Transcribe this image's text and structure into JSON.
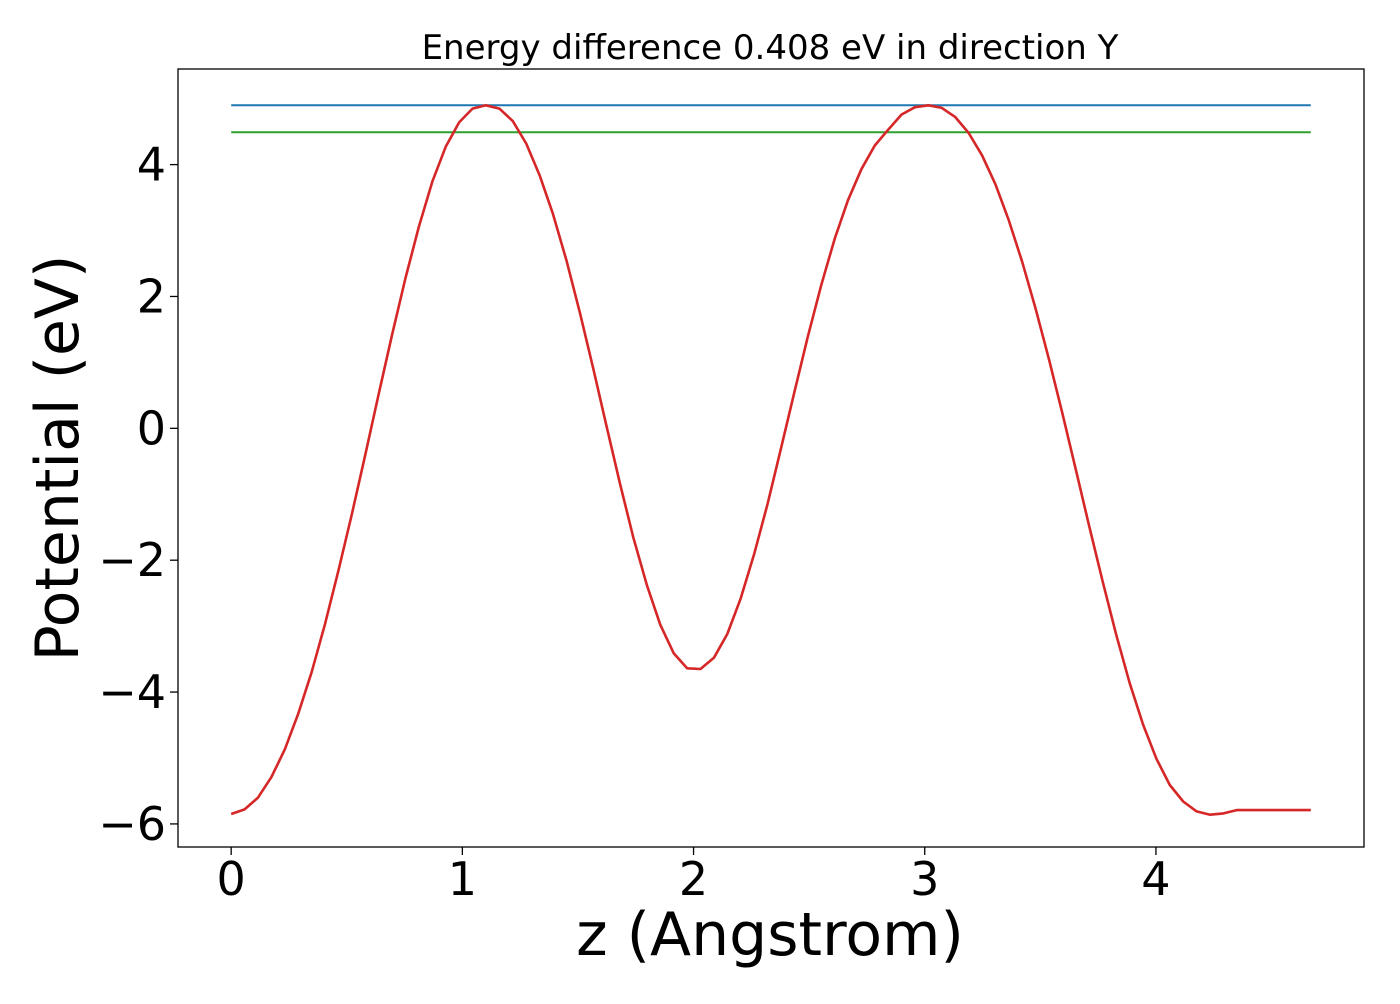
{
  "chart_data": {
    "type": "line",
    "title": "Energy difference 0.408 eV in direction Y",
    "xlabel": "z (Angstrom)",
    "ylabel": "Potential (eV)",
    "xlim": [
      -0.23,
      4.9
    ],
    "ylim": [
      -6.35,
      5.45
    ],
    "xticks": [
      0,
      1,
      2,
      3,
      4
    ],
    "yticks": [
      -6,
      -4,
      -2,
      0,
      2,
      4
    ],
    "xtick_labels": [
      "0",
      "1",
      "2",
      "3",
      "4"
    ],
    "ytick_labels": [
      "−6",
      "−4",
      "−2",
      "0",
      "2",
      "4"
    ],
    "grid": false,
    "legend": "none",
    "colors": {
      "potential": "#d62728",
      "upper_level": "#1f77b4",
      "lower_level": "#2ca02c",
      "frame": "#000000"
    },
    "series": [
      {
        "key": "potential",
        "color": "#d62728",
        "x": [
          0.0,
          0.058,
          0.116,
          0.174,
          0.232,
          0.29,
          0.348,
          0.406,
          0.464,
          0.522,
          0.58,
          0.638,
          0.696,
          0.754,
          0.812,
          0.87,
          0.928,
          0.986,
          1.044,
          1.102,
          1.16,
          1.218,
          1.276,
          1.334,
          1.392,
          1.45,
          1.508,
          1.566,
          1.624,
          1.682,
          1.74,
          1.798,
          1.856,
          1.914,
          1.972,
          2.03,
          2.088,
          2.146,
          2.204,
          2.262,
          2.32,
          2.378,
          2.436,
          2.494,
          2.552,
          2.61,
          2.668,
          2.726,
          2.784,
          2.842,
          2.9,
          2.958,
          3.016,
          3.074,
          3.132,
          3.19,
          3.248,
          3.306,
          3.364,
          3.422,
          3.48,
          3.538,
          3.596,
          3.654,
          3.712,
          3.77,
          3.828,
          3.886,
          3.944,
          4.002,
          4.06,
          4.118,
          4.176,
          4.234,
          4.292,
          4.35,
          4.408,
          4.466,
          4.524,
          4.582,
          4.64,
          4.67
        ],
        "y": [
          -5.85,
          -5.78,
          -5.6,
          -5.29,
          -4.87,
          -4.33,
          -3.7,
          -2.97,
          -2.16,
          -1.3,
          -0.4,
          0.52,
          1.42,
          2.28,
          3.06,
          3.74,
          4.27,
          4.64,
          4.85,
          4.9,
          4.85,
          4.66,
          4.32,
          3.84,
          3.25,
          2.55,
          1.76,
          0.91,
          0.03,
          -0.84,
          -1.66,
          -2.38,
          -2.98,
          -3.41,
          -3.64,
          -3.65,
          -3.48,
          -3.12,
          -2.58,
          -1.91,
          -1.15,
          -0.31,
          0.55,
          1.39,
          2.17,
          2.87,
          3.46,
          3.93,
          4.29,
          4.53,
          4.76,
          4.87,
          4.9,
          4.86,
          4.72,
          4.48,
          4.14,
          3.7,
          3.15,
          2.52,
          1.81,
          1.04,
          0.22,
          -0.63,
          -1.49,
          -2.33,
          -3.13,
          -3.86,
          -4.49,
          -5.01,
          -5.41,
          -5.66,
          -5.81,
          -5.86,
          -5.84,
          -5.79,
          -5.79,
          -5.79,
          -5.79,
          -5.79,
          -5.79,
          -5.79
        ]
      },
      {
        "key": "upper_level",
        "color": "#1f77b4",
        "x": [
          0.0,
          4.67
        ],
        "y": [
          4.9,
          4.9
        ]
      },
      {
        "key": "lower_level",
        "color": "#2ca02c",
        "x": [
          0.0,
          4.67
        ],
        "y": [
          4.492,
          4.492
        ]
      }
    ]
  }
}
